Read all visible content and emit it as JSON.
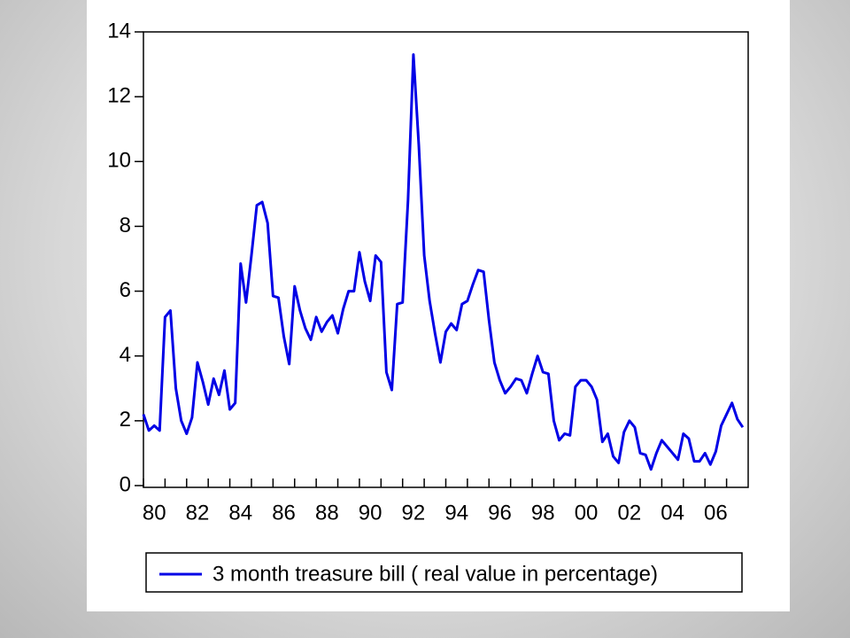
{
  "chart_data": {
    "type": "line",
    "x": [
      1980,
      1980.25,
      1980.5,
      1980.75,
      1981,
      1981.25,
      1981.5,
      1981.75,
      1982,
      1982.25,
      1982.5,
      1982.75,
      1983,
      1983.25,
      1983.5,
      1983.75,
      1984,
      1984.25,
      1984.5,
      1984.75,
      1985,
      1985.25,
      1985.5,
      1985.75,
      1986,
      1986.25,
      1986.5,
      1986.75,
      1987,
      1987.25,
      1987.5,
      1987.75,
      1988,
      1988.25,
      1988.5,
      1988.75,
      1989,
      1989.25,
      1989.5,
      1989.75,
      1990,
      1990.25,
      1990.5,
      1990.75,
      1991,
      1991.25,
      1991.5,
      1991.75,
      1992,
      1992.25,
      1992.5,
      1992.75,
      1993,
      1993.25,
      1993.5,
      1993.75,
      1994,
      1994.25,
      1994.5,
      1994.75,
      1995,
      1995.25,
      1995.5,
      1995.75,
      1996,
      1996.25,
      1996.5,
      1996.75,
      1997,
      1997.25,
      1997.5,
      1997.75,
      1998,
      1998.25,
      1998.5,
      1998.75,
      1999,
      1999.25,
      1999.5,
      1999.75,
      2000,
      2000.25,
      2000.5,
      2000.75,
      2001,
      2001.25,
      2001.5,
      2001.75,
      2002,
      2002.25,
      2002.5,
      2002.75,
      2003,
      2003.25,
      2003.5,
      2003.75,
      2004,
      2004.25,
      2004.5,
      2004.75,
      2005,
      2005.25,
      2005.5,
      2005.75,
      2006,
      2006.25,
      2006.5,
      2006.75,
      2007,
      2007.25,
      2007.5,
      2007.75
    ],
    "series": [
      {
        "name": "3 month treasure bill ( real value in percentage)",
        "color": "#0000e6",
        "values": [
          2.2,
          1.7,
          1.85,
          1.7,
          5.2,
          5.4,
          3.0,
          2.0,
          1.6,
          2.1,
          3.8,
          3.2,
          2.5,
          3.3,
          2.8,
          3.55,
          2.35,
          2.55,
          6.85,
          5.65,
          7.1,
          8.65,
          8.75,
          8.1,
          5.85,
          5.8,
          4.6,
          3.75,
          6.15,
          5.4,
          4.85,
          4.5,
          5.2,
          4.75,
          5.05,
          5.25,
          4.7,
          5.45,
          6.0,
          6.0,
          7.2,
          6.3,
          5.7,
          7.1,
          6.9,
          3.5,
          2.95,
          5.6,
          5.65,
          8.8,
          13.3,
          10.5,
          7.1,
          5.7,
          4.7,
          3.8,
          4.75,
          5.0,
          4.8,
          5.6,
          5.7,
          6.2,
          6.65,
          6.6,
          5.1,
          3.8,
          3.25,
          2.85,
          3.05,
          3.3,
          3.25,
          2.85,
          3.45,
          4.0,
          3.5,
          3.45,
          2.0,
          1.4,
          1.6,
          1.55,
          3.05,
          3.25,
          3.25,
          3.05,
          2.65,
          1.35,
          1.6,
          0.9,
          0.7,
          1.65,
          2.0,
          1.8,
          1.0,
          0.95,
          0.5,
          1.0,
          1.4,
          1.2,
          1.0,
          0.8,
          1.6,
          1.45,
          0.75,
          0.75,
          1.0,
          0.65,
          1.05,
          1.85,
          2.2,
          2.55,
          2.05,
          1.8
        ]
      }
    ],
    "xlim": [
      1980,
      2008
    ],
    "xticks": [
      {
        "value": 1980,
        "label": "80"
      },
      {
        "value": 1982,
        "label": "82"
      },
      {
        "value": 1984,
        "label": "84"
      },
      {
        "value": 1986,
        "label": "86"
      },
      {
        "value": 1988,
        "label": "88"
      },
      {
        "value": 1990,
        "label": "90"
      },
      {
        "value": 1992,
        "label": "92"
      },
      {
        "value": 1994,
        "label": "94"
      },
      {
        "value": 1996,
        "label": "96"
      },
      {
        "value": 1998,
        "label": "98"
      },
      {
        "value": 2000,
        "label": "00"
      },
      {
        "value": 2002,
        "label": "02"
      },
      {
        "value": 2004,
        "label": "04"
      },
      {
        "value": 2006,
        "label": "06"
      }
    ],
    "minor_xticks": [
      1981,
      1983,
      1985,
      1987,
      1989,
      1991,
      1993,
      1995,
      1997,
      1999,
      2001,
      2003,
      2005,
      2007
    ],
    "ylim": [
      0,
      14
    ],
    "yticks": [
      0,
      2,
      4,
      6,
      8,
      10,
      12,
      14
    ],
    "legend": "bottom"
  }
}
